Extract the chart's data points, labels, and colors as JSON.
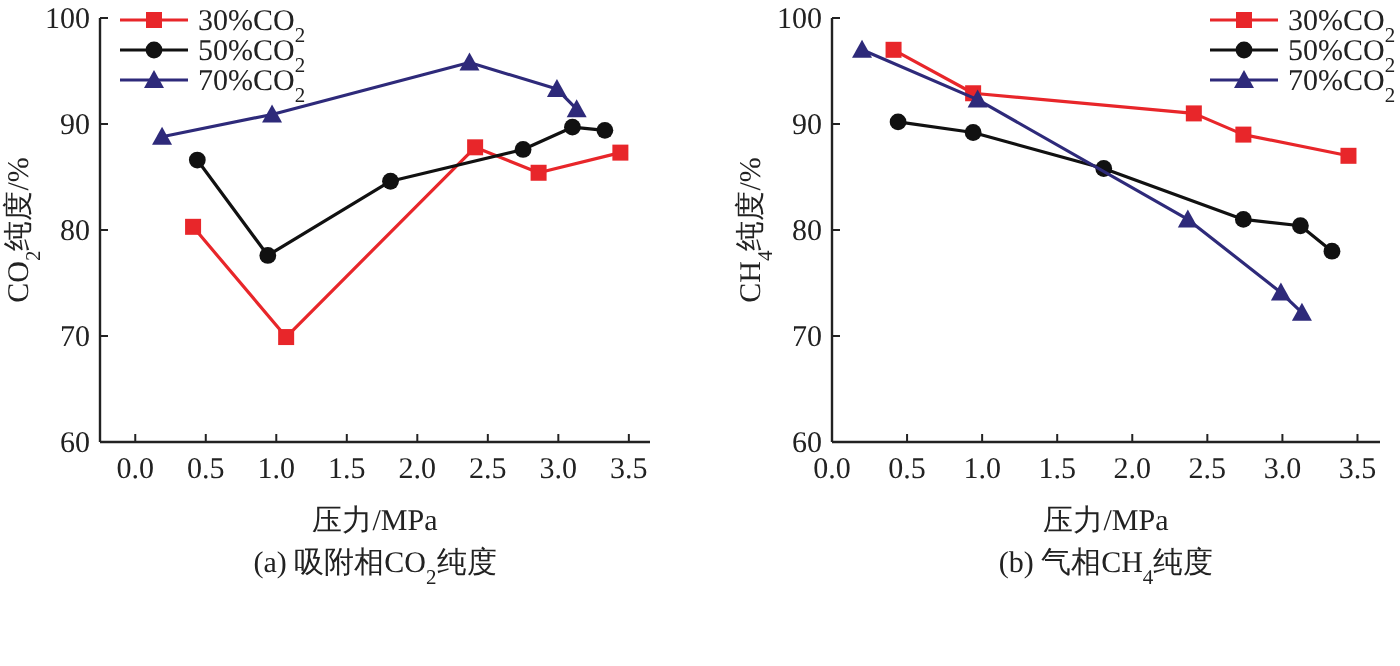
{
  "chart_data": [
    {
      "type": "line",
      "title": "(a) 吸附相CO$_{2}$纯度",
      "xlabel": "压力/MPa",
      "ylabel": "CO$_{2}$纯度/%",
      "xlim": [
        -0.25,
        3.65
      ],
      "ylim": [
        60,
        100
      ],
      "xticks": [
        {
          "value": 0,
          "label": "0.0"
        },
        0.5,
        {
          "value": 1,
          "label": "1.0"
        },
        1.5,
        {
          "value": 2,
          "label": "2.0"
        },
        2.5,
        {
          "value": 3,
          "label": "3.0"
        },
        3.5
      ],
      "yticks": [
        60,
        70,
        80,
        90,
        100
      ],
      "legend": "top left",
      "grid": false,
      "line_style": "solid",
      "series": [
        {
          "name": "30%CO$_{2}$",
          "color": "#e8262a",
          "marker": "square",
          "x": [
            0.41,
            1.07,
            2.41,
            2.86,
            3.44
          ],
          "values": [
            80.3,
            69.9,
            87.8,
            85.4,
            87.3
          ]
        },
        {
          "name": "50%CO$_{2}$",
          "color": "#111111",
          "marker": "circle",
          "x": [
            0.44,
            0.94,
            1.81,
            2.75,
            3.1,
            3.33
          ],
          "values": [
            86.6,
            77.6,
            84.6,
            87.6,
            89.7,
            89.4
          ]
        },
        {
          "name": "70%CO$_{2}$",
          "color": "#2e2a7a",
          "marker": "triangle",
          "x": [
            0.19,
            0.97,
            2.37,
            2.99,
            3.13
          ],
          "values": [
            88.8,
            90.9,
            95.8,
            93.3,
            91.4
          ]
        }
      ]
    },
    {
      "type": "line",
      "title": "(b) 气相CH$_{4}$纯度",
      "xlabel": "压力/MPa",
      "ylabel": "CH$_{4}$纯度/%",
      "xlim": [
        0,
        3.65
      ],
      "ylim": [
        60,
        100
      ],
      "xticks": [
        {
          "value": 0,
          "label": "0.0"
        },
        0.5,
        {
          "value": 1,
          "label": "1.0"
        },
        1.5,
        {
          "value": 2,
          "label": "2.0"
        },
        2.5,
        {
          "value": 3,
          "label": "3.0"
        },
        3.5
      ],
      "yticks": [
        60,
        70,
        80,
        90,
        100
      ],
      "legend": "top right",
      "grid": false,
      "line_style": "solid",
      "series": [
        {
          "name": "30%CO$_{2}$",
          "color": "#e8262a",
          "marker": "square",
          "x": [
            0.41,
            0.94,
            2.41,
            2.74,
            3.44
          ],
          "values": [
            97.0,
            92.9,
            91.0,
            89.0,
            87.0
          ]
        },
        {
          "name": "50%CO$_{2}$",
          "color": "#111111",
          "marker": "circle",
          "x": [
            0.44,
            0.94,
            1.81,
            2.74,
            3.12,
            3.33
          ],
          "values": [
            90.2,
            89.2,
            85.8,
            81.0,
            80.4,
            78.0
          ]
        },
        {
          "name": "70%CO$_{2}$",
          "color": "#2e2a7a",
          "marker": "triangle",
          "x": [
            0.2,
            0.97,
            2.37,
            2.99,
            3.13
          ],
          "values": [
            97.0,
            92.3,
            81.0,
            74.1,
            72.2
          ]
        }
      ]
    }
  ]
}
